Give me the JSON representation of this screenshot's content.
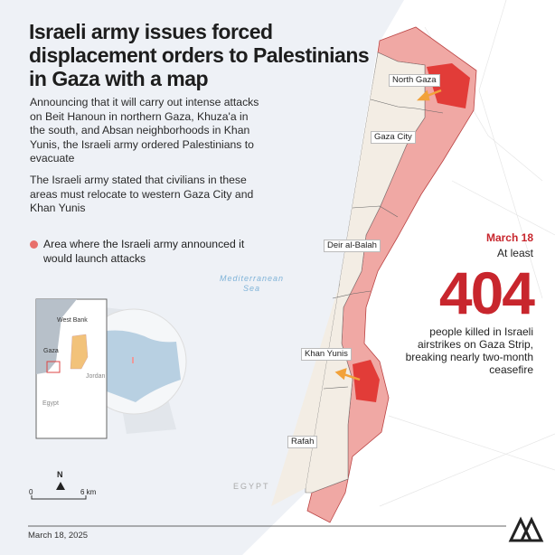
{
  "title": "Israeli army issues forced displacement orders to Palestinians in Gaza with a map",
  "paragraphs": [
    "Announcing that it will carry out intense attacks on Beit Hanoun in northern Gaza, Khuza'a in the south, and Absan neighborhoods in Khan Yunis, the Israeli army ordered Palestinians to evacuate",
    "The Israeli army stated that civilians in these areas must relocate to western Gaza City and Khan Yunis"
  ],
  "legend": "Area where the Israeli army announced it would launch attacks",
  "map": {
    "sea_label": "Mediterranean Sea",
    "country_label": "EGYPT",
    "regions": [
      "North Gaza",
      "Gaza City",
      "Deir al-Balah",
      "Khan Yunis",
      "Rafah"
    ],
    "inset": {
      "labels": [
        "West Bank",
        "Gaza",
        "Jordan",
        "Egypt"
      ]
    },
    "north": "N",
    "scale": {
      "start": "0",
      "end": "6 km"
    },
    "colors": {
      "sea": "#eef1f6",
      "strip": "#f3ede4",
      "buffer": "#f0a8a4",
      "attack": "#e0302c",
      "arrow": "#f2a23a"
    }
  },
  "stats": {
    "date": "March 18",
    "prefix": "At least",
    "number": "404",
    "description": "people killed in Israeli airstrikes on Gaza Strip, breaking nearly two-month ceasefire"
  },
  "footer": {
    "date": "March 18, 2025",
    "logo": "AA"
  }
}
